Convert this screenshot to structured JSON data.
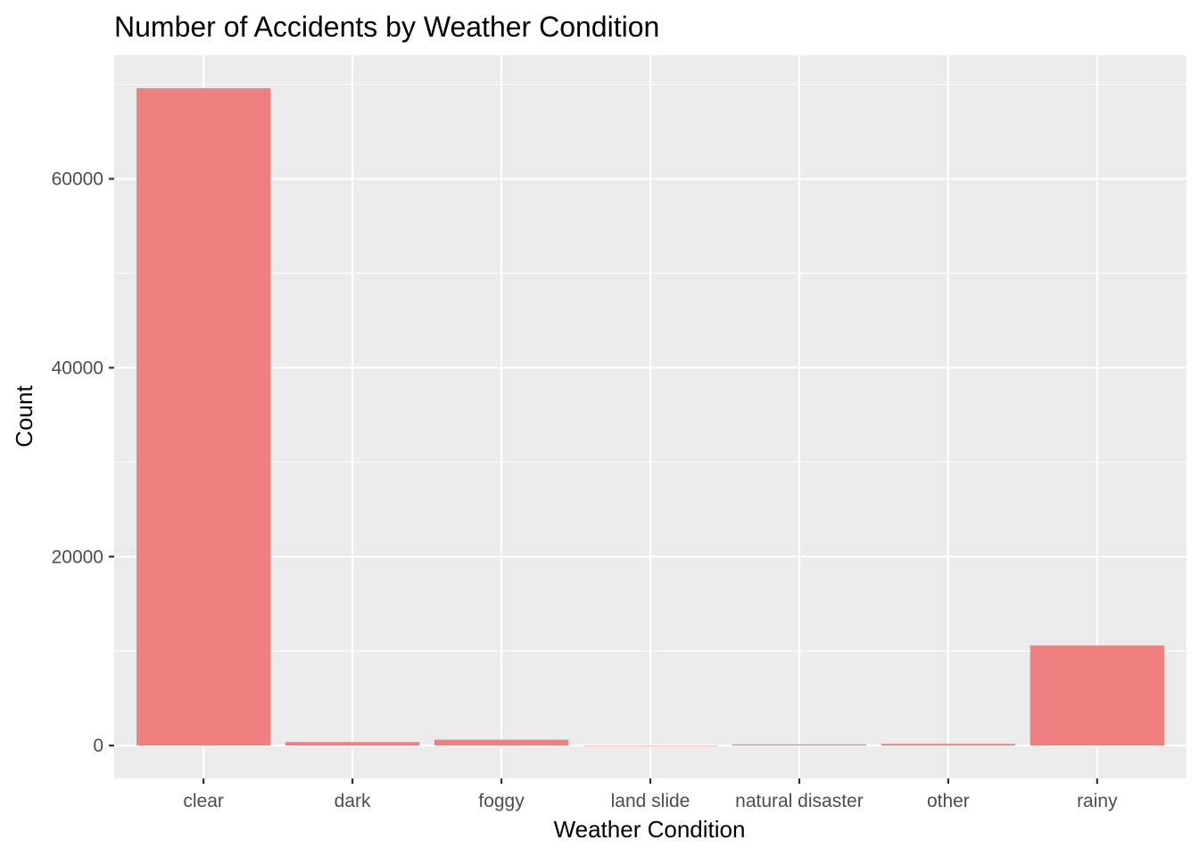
{
  "chart_data": {
    "type": "bar",
    "title": "Number of Accidents by Weather Condition",
    "xlabel": "Weather Condition",
    "ylabel": "Count",
    "categories": [
      "clear",
      "dark",
      "foggy",
      "land slide",
      "natural disaster",
      "other",
      "rainy"
    ],
    "values": [
      69600,
      380,
      620,
      10,
      120,
      180,
      10600
    ],
    "ylim": [
      -3480,
      73080
    ],
    "yticks": [
      0,
      20000,
      40000,
      60000
    ],
    "ytick_labels": [
      "0",
      "20000",
      "40000",
      "60000"
    ],
    "grid": true,
    "legend": "none",
    "bar_color": "#F08080",
    "panel_background": "#EBEBEB"
  }
}
